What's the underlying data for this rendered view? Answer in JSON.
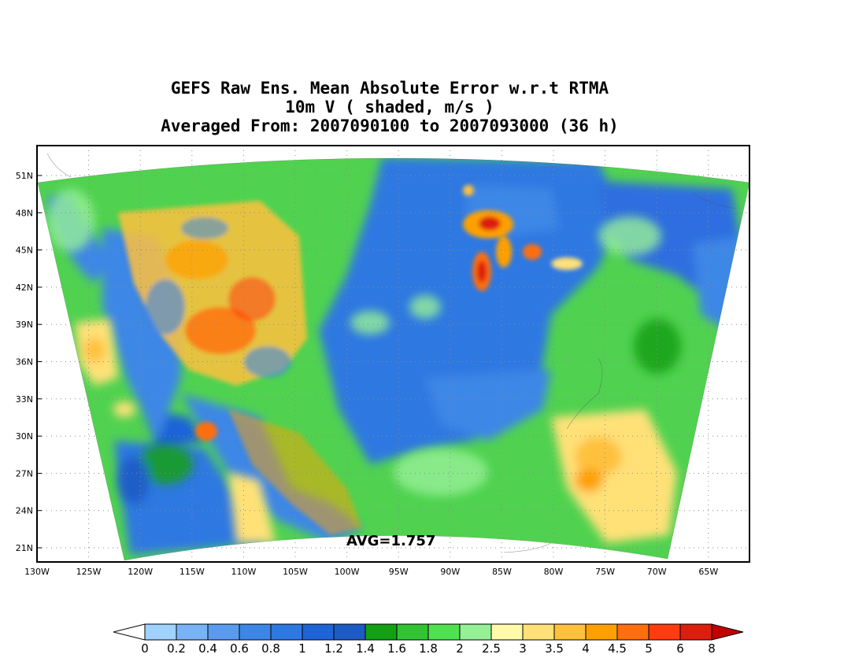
{
  "title": {
    "line1": "GEFS Raw Ens. Mean Absolute Error w.r.t RTMA",
    "line2": "10m V ( shaded, m/s )",
    "line3": "Averaged From: 2007090100 to 2007093000 (36 h)"
  },
  "map": {
    "lon_labels": [
      "130W",
      "125W",
      "120W",
      "115W",
      "110W",
      "105W",
      "100W",
      "95W",
      "90W",
      "85W",
      "80W",
      "75W",
      "70W",
      "65W"
    ],
    "lat_labels": [
      "51N",
      "48N",
      "45N",
      "42N",
      "39N",
      "36N",
      "33N",
      "30N",
      "27N",
      "24N",
      "21N"
    ],
    "avg_label": "AVG=1.757"
  },
  "colorbar": {
    "labels": [
      "0",
      "0.2",
      "0.4",
      "0.6",
      "0.8",
      "1",
      "1.2",
      "1.4",
      "1.6",
      "1.8",
      "2",
      "2.5",
      "3",
      "3.5",
      "4",
      "4.5",
      "5",
      "6",
      "8"
    ],
    "colors": [
      "#a0d2ff",
      "#78b4f5",
      "#5a9bee",
      "#3c87e6",
      "#2d78e1",
      "#1e64d7",
      "#1e5ac3",
      "#14a014",
      "#32c332",
      "#50e150",
      "#96f096",
      "#fffaaa",
      "#ffe178",
      "#ffc13c",
      "#ffa000",
      "#ff6e0f",
      "#ff3c0f",
      "#dc1e0f",
      "#c00000"
    ],
    "low_color": "#ffffff"
  }
}
